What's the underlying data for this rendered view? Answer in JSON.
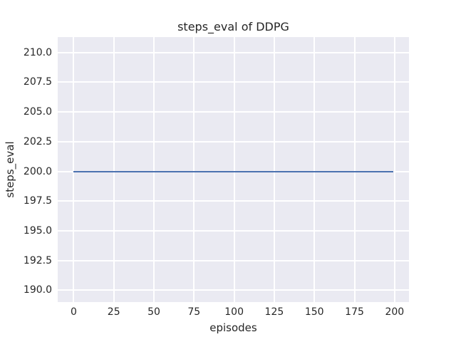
{
  "chart_data": {
    "type": "line",
    "title": "steps_eval of DDPG",
    "xlabel": "episodes",
    "ylabel": "steps_eval",
    "style": "seaborn-darkgrid",
    "grid": true,
    "legend": false,
    "xlim": [
      -9.95,
      208.95
    ],
    "ylim": [
      189.0,
      211.3
    ],
    "xticks": [
      0,
      25,
      50,
      75,
      100,
      125,
      150,
      175,
      200
    ],
    "xtick_labels": [
      "0",
      "25",
      "50",
      "75",
      "100",
      "125",
      "150",
      "175",
      "200"
    ],
    "yticks": [
      190.0,
      192.5,
      195.0,
      197.5,
      200.0,
      202.5,
      205.0,
      207.5,
      210.0
    ],
    "ytick_labels": [
      "190.0",
      "192.5",
      "195.0",
      "197.5",
      "200.0",
      "202.5",
      "205.0",
      "207.5",
      "210.0"
    ],
    "series": [
      {
        "name": "DDPG steps_eval",
        "description": "constant value 200 for every evaluation episode 0 through 199",
        "x": [
          0,
          199
        ],
        "y": [
          200,
          200
        ],
        "y_constant": 200,
        "color": "#4c72b0"
      }
    ],
    "colors": {
      "figure_background": "#ffffff",
      "plot_background": "#eaeaf2",
      "gridline": "#ffffff",
      "text": "#262626",
      "line": "#4c72b0"
    }
  }
}
